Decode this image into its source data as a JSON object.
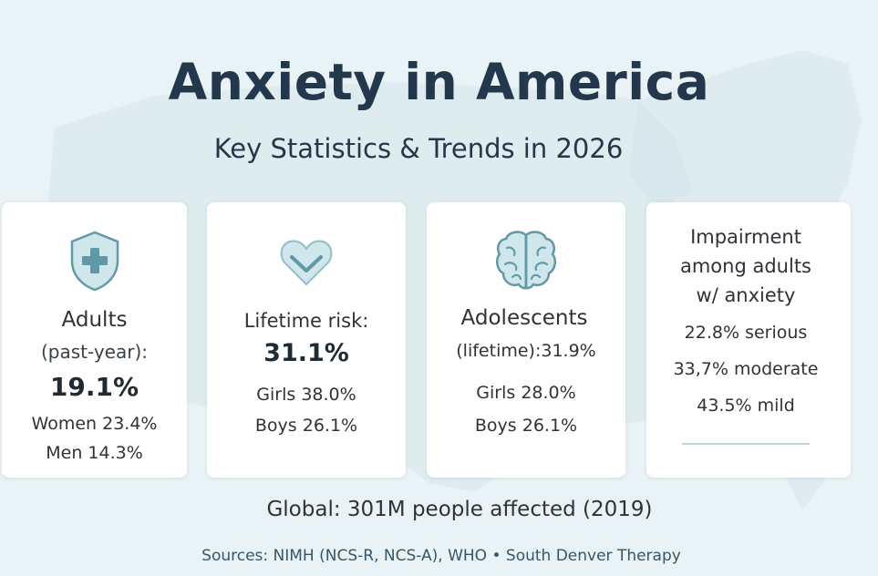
{
  "colors": {
    "background": "#e9f2f4",
    "title": "#23384c",
    "card": "#ffffff",
    "icon_fill": "#cfe6ea",
    "icon_stroke": "#5f9aa6"
  },
  "header": {
    "title": "Anxiety in America",
    "subtitle": "Key Statistics & Trends in 2026"
  },
  "cards": [
    {
      "icon": "shield-plus-icon",
      "label": "Adults",
      "sublabel": "(past-year):",
      "value": "19.1%",
      "line1": "Women 23.4%",
      "line2": "Men 14.3%"
    },
    {
      "icon": "heart-chevron-icon",
      "label": "Lifetime risk:",
      "value": "31.1%",
      "line1": "Girls 38.0%",
      "line2": "Boys 26.1%"
    },
    {
      "icon": "brain-icon",
      "label": "Adolescents",
      "sublabel": "(lifetime):31.9%",
      "line1": "Girls 28.0%",
      "line2": "Boys 26.1%"
    },
    {
      "heading1": "Impairment",
      "heading2": "among adults",
      "heading3": "w/ anxiety",
      "line1": "22.8% serious",
      "line2": "33,7% moderate",
      "line3": "43.5% mild"
    }
  ],
  "footer": {
    "global": "Global: 301M people affected (2019)",
    "sources": "Sources: NIMH (NCS-R, NCS-A), WHO • South Denver Therapy"
  }
}
